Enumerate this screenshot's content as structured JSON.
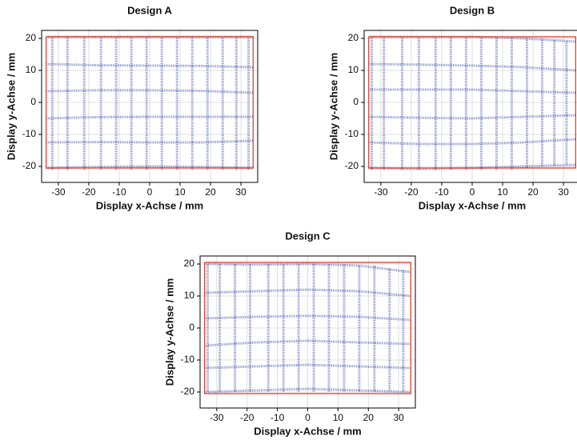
{
  "chart_data": [
    {
      "type": "line",
      "title": "Design A",
      "xlabel": "Display x-Achse / mm",
      "ylabel": "Display y-Achse / mm",
      "xlim": [
        -35.5,
        35.5
      ],
      "ylim": [
        -25,
        22.5
      ],
      "xticks": [
        -30,
        -20,
        -10,
        0,
        10,
        20,
        30
      ],
      "yticks": [
        -20,
        -10,
        0,
        10,
        20
      ],
      "grid": true,
      "series": [
        {
          "color": "#3a4ca8",
          "linestyle": "dotted",
          "x": [
            -34,
            -17,
            0,
            17,
            34
          ],
          "values": [
            20.5,
            20.5,
            20.5,
            20.5,
            20.5
          ]
        },
        {
          "color": "#3a4ca8",
          "linestyle": "dotted",
          "x": [
            -34,
            -17,
            0,
            17,
            34
          ],
          "values": [
            12,
            11.6,
            11.5,
            11.4,
            11
          ]
        },
        {
          "color": "#3a4ca8",
          "linestyle": "dotted",
          "x": [
            -34,
            -17,
            0,
            17,
            34
          ],
          "values": [
            3.5,
            3.8,
            3.8,
            3.6,
            3
          ]
        },
        {
          "color": "#3a4ca8",
          "linestyle": "dotted",
          "x": [
            -34,
            -17,
            0,
            17,
            34
          ],
          "values": [
            -5,
            -4.6,
            -4.5,
            -4.5,
            -4.5
          ]
        },
        {
          "color": "#3a4ca8",
          "linestyle": "dotted",
          "x": [
            -34,
            -17,
            0,
            17,
            34
          ],
          "values": [
            -12.5,
            -12.4,
            -12.5,
            -12.5,
            -12
          ]
        },
        {
          "color": "#3a4ca8",
          "linestyle": "dotted",
          "x": [
            -34,
            -17,
            0,
            17,
            34
          ],
          "values": [
            -20.5,
            -20.2,
            -20,
            -20.2,
            -20.5
          ]
        },
        {
          "color": "#3a4ca8",
          "linestyle": "dotted",
          "x": [
            -32,
            -32
          ],
          "values": [
            20.5,
            -21
          ]
        },
        {
          "color": "#3a4ca8",
          "linestyle": "dotted",
          "x": [
            -27,
            -27
          ],
          "values": [
            20.5,
            -21
          ]
        },
        {
          "color": "#3a4ca8",
          "linestyle": "dotted",
          "x": [
            -21.5,
            -21.5
          ],
          "values": [
            20.5,
            -21
          ]
        },
        {
          "color": "#3a4ca8",
          "linestyle": "dotted",
          "x": [
            -16,
            -16
          ],
          "values": [
            20.5,
            -21
          ]
        },
        {
          "color": "#3a4ca8",
          "linestyle": "dotted",
          "x": [
            -11,
            -11
          ],
          "values": [
            20.5,
            -21
          ]
        },
        {
          "color": "#3a4ca8",
          "linestyle": "dotted",
          "x": [
            -6,
            -6
          ],
          "values": [
            20.5,
            -21
          ]
        },
        {
          "color": "#3a4ca8",
          "linestyle": "dotted",
          "x": [
            -1,
            -1
          ],
          "values": [
            20.5,
            -21
          ]
        },
        {
          "color": "#3a4ca8",
          "linestyle": "dotted",
          "x": [
            4,
            4
          ],
          "values": [
            20.5,
            -21
          ]
        },
        {
          "color": "#3a4ca8",
          "linestyle": "dotted",
          "x": [
            9,
            9
          ],
          "values": [
            20.5,
            -21
          ]
        },
        {
          "color": "#3a4ca8",
          "linestyle": "dotted",
          "x": [
            14,
            14
          ],
          "values": [
            20.5,
            -21
          ]
        },
        {
          "color": "#3a4ca8",
          "linestyle": "dotted",
          "x": [
            19,
            19
          ],
          "values": [
            20.5,
            -21
          ]
        },
        {
          "color": "#3a4ca8",
          "linestyle": "dotted",
          "x": [
            24,
            24
          ],
          "values": [
            20.5,
            -21
          ]
        },
        {
          "color": "#3a4ca8",
          "linestyle": "dotted",
          "x": [
            28.5,
            28.5
          ],
          "values": [
            20.5,
            -21
          ]
        },
        {
          "color": "#3a4ca8",
          "linestyle": "dotted",
          "x": [
            32.5,
            32.5
          ],
          "values": [
            20.5,
            -21
          ]
        },
        {
          "color": "#e8321e",
          "linestyle": "solid",
          "x": [
            -34,
            34,
            34,
            -34,
            -34
          ],
          "values": [
            20.5,
            20.5,
            -20.5,
            -20.5,
            20.5
          ]
        }
      ]
    },
    {
      "type": "line",
      "title": "Design B",
      "xlabel": "Display x-Achse / mm",
      "ylabel": "Display y-Achse / mm",
      "xlim": [
        -35.5,
        35.5
      ],
      "ylim": [
        -25,
        22.5
      ],
      "xticks": [
        -30,
        -20,
        -10,
        0,
        10,
        20,
        30
      ],
      "yticks": [
        -20,
        -10,
        0,
        10,
        20
      ],
      "grid": true,
      "series": [
        {
          "color": "#3a4ca8",
          "linestyle": "dotted",
          "x": [
            -34,
            -17,
            0,
            17,
            34
          ],
          "values": [
            20.5,
            20.5,
            20.5,
            20,
            19
          ]
        },
        {
          "color": "#3a4ca8",
          "linestyle": "dotted",
          "x": [
            -34,
            -17,
            0,
            17,
            34
          ],
          "values": [
            12,
            11.8,
            11.5,
            11,
            10
          ]
        },
        {
          "color": "#3a4ca8",
          "linestyle": "dotted",
          "x": [
            -34,
            -17,
            0,
            17,
            34
          ],
          "values": [
            4,
            4,
            4,
            3.5,
            3
          ]
        },
        {
          "color": "#3a4ca8",
          "linestyle": "dotted",
          "x": [
            -34,
            -17,
            0,
            17,
            34
          ],
          "values": [
            -4.5,
            -4.8,
            -5,
            -4.5,
            -4
          ]
        },
        {
          "color": "#3a4ca8",
          "linestyle": "dotted",
          "x": [
            -34,
            -17,
            0,
            17,
            34
          ],
          "values": [
            -12.5,
            -13,
            -13,
            -12.5,
            -11.5
          ]
        },
        {
          "color": "#3a4ca8",
          "linestyle": "dotted",
          "x": [
            -34,
            -17,
            0,
            17,
            34
          ],
          "values": [
            -20.5,
            -20.8,
            -20.5,
            -20,
            -19.5
          ]
        },
        {
          "color": "#3a4ca8",
          "linestyle": "dotted",
          "x": [
            -33,
            -33
          ],
          "values": [
            20.5,
            -21
          ]
        },
        {
          "color": "#3a4ca8",
          "linestyle": "dotted",
          "x": [
            -29,
            -29
          ],
          "values": [
            20.5,
            -21
          ]
        },
        {
          "color": "#3a4ca8",
          "linestyle": "dotted",
          "x": [
            -23,
            -23
          ],
          "values": [
            20.5,
            -21
          ]
        },
        {
          "color": "#3a4ca8",
          "linestyle": "dotted",
          "x": [
            -17.5,
            -17.5
          ],
          "values": [
            20.5,
            -21
          ]
        },
        {
          "color": "#3a4ca8",
          "linestyle": "dotted",
          "x": [
            -12,
            -12
          ],
          "values": [
            20.5,
            -21
          ]
        },
        {
          "color": "#3a4ca8",
          "linestyle": "dotted",
          "x": [
            -7,
            -7
          ],
          "values": [
            20.5,
            -21
          ]
        },
        {
          "color": "#3a4ca8",
          "linestyle": "dotted",
          "x": [
            -2,
            -2
          ],
          "values": [
            20.5,
            -21
          ]
        },
        {
          "color": "#3a4ca8",
          "linestyle": "dotted",
          "x": [
            3,
            3
          ],
          "values": [
            20.5,
            -21
          ]
        },
        {
          "color": "#3a4ca8",
          "linestyle": "dotted",
          "x": [
            8,
            8
          ],
          "values": [
            20.5,
            -21
          ]
        },
        {
          "color": "#3a4ca8",
          "linestyle": "dotted",
          "x": [
            13,
            13
          ],
          "values": [
            20.5,
            -21
          ]
        },
        {
          "color": "#3a4ca8",
          "linestyle": "dotted",
          "x": [
            18,
            18
          ],
          "values": [
            20,
            -20.5
          ]
        },
        {
          "color": "#3a4ca8",
          "linestyle": "dotted",
          "x": [
            23,
            23
          ],
          "values": [
            20,
            -20
          ]
        },
        {
          "color": "#3a4ca8",
          "linestyle": "dotted",
          "x": [
            27,
            27
          ],
          "values": [
            19.5,
            -20
          ]
        },
        {
          "color": "#3a4ca8",
          "linestyle": "dotted",
          "x": [
            31,
            31
          ],
          "values": [
            19,
            -19.5
          ]
        },
        {
          "color": "#e8321e",
          "linestyle": "solid",
          "x": [
            -34,
            34,
            34,
            -34,
            -34
          ],
          "values": [
            20.5,
            20.5,
            -20.5,
            -20.5,
            20.5
          ]
        }
      ]
    },
    {
      "type": "line",
      "title": "Design C",
      "xlabel": "Display x-Achse / mm",
      "ylabel": "Display y-Achse / mm",
      "xlim": [
        -35.5,
        35.5
      ],
      "ylim": [
        -25,
        22.5
      ],
      "xticks": [
        -30,
        -20,
        -10,
        0,
        10,
        20,
        30
      ],
      "yticks": [
        -20,
        -10,
        0,
        10,
        20
      ],
      "grid": true,
      "series": [
        {
          "color": "#3a4ca8",
          "linestyle": "dotted",
          "x": [
            -34,
            -17,
            0,
            17,
            34
          ],
          "values": [
            20,
            19.8,
            20,
            19.5,
            17.5
          ]
        },
        {
          "color": "#3a4ca8",
          "linestyle": "dotted",
          "x": [
            -34,
            -17,
            0,
            17,
            34
          ],
          "values": [
            11,
            11.5,
            12,
            11.5,
            10
          ]
        },
        {
          "color": "#3a4ca8",
          "linestyle": "dotted",
          "x": [
            -34,
            -17,
            0,
            17,
            34
          ],
          "values": [
            3,
            3.5,
            3.8,
            3.5,
            2.5
          ]
        },
        {
          "color": "#3a4ca8",
          "linestyle": "dotted",
          "x": [
            -34,
            -17,
            0,
            17,
            34
          ],
          "values": [
            -5.5,
            -4.5,
            -4,
            -4.5,
            -5
          ]
        },
        {
          "color": "#3a4ca8",
          "linestyle": "dotted",
          "x": [
            -34,
            -17,
            0,
            17,
            34
          ],
          "values": [
            -12.5,
            -12,
            -11.5,
            -12,
            -12.5
          ]
        },
        {
          "color": "#3a4ca8",
          "linestyle": "dotted",
          "x": [
            -34,
            -17,
            0,
            17,
            34
          ],
          "values": [
            -20,
            -19.5,
            -19,
            -19.5,
            -20
          ]
        },
        {
          "color": "#3a4ca8",
          "linestyle": "dotted",
          "x": [
            -33,
            -33
          ],
          "values": [
            20,
            -20
          ]
        },
        {
          "color": "#3a4ca8",
          "linestyle": "dotted",
          "x": [
            -29,
            -29
          ],
          "values": [
            20,
            -20
          ]
        },
        {
          "color": "#3a4ca8",
          "linestyle": "dotted",
          "x": [
            -24,
            -24
          ],
          "values": [
            20,
            -20
          ]
        },
        {
          "color": "#3a4ca8",
          "linestyle": "dotted",
          "x": [
            -19,
            -19
          ],
          "values": [
            20,
            -20
          ]
        },
        {
          "color": "#3a4ca8",
          "linestyle": "dotted",
          "x": [
            -13,
            -13
          ],
          "values": [
            20,
            -20
          ]
        },
        {
          "color": "#3a4ca8",
          "linestyle": "dotted",
          "x": [
            -8,
            -8
          ],
          "values": [
            20,
            -20
          ]
        },
        {
          "color": "#3a4ca8",
          "linestyle": "dotted",
          "x": [
            -3,
            -3
          ],
          "values": [
            20,
            -20
          ]
        },
        {
          "color": "#3a4ca8",
          "linestyle": "dotted",
          "x": [
            2,
            2
          ],
          "values": [
            20,
            -20
          ]
        },
        {
          "color": "#3a4ca8",
          "linestyle": "dotted",
          "x": [
            7,
            7
          ],
          "values": [
            20,
            -20
          ]
        },
        {
          "color": "#3a4ca8",
          "linestyle": "dotted",
          "x": [
            12,
            12
          ],
          "values": [
            20,
            -20
          ]
        },
        {
          "color": "#3a4ca8",
          "linestyle": "dotted",
          "x": [
            17,
            17
          ],
          "values": [
            19.5,
            -20
          ]
        },
        {
          "color": "#3a4ca8",
          "linestyle": "dotted",
          "x": [
            22,
            22
          ],
          "values": [
            19.5,
            -20
          ]
        },
        {
          "color": "#3a4ca8",
          "linestyle": "dotted",
          "x": [
            27,
            27
          ],
          "values": [
            18.5,
            -20
          ]
        },
        {
          "color": "#3a4ca8",
          "linestyle": "dotted",
          "x": [
            31.5,
            31.5
          ],
          "values": [
            18,
            -20
          ]
        },
        {
          "color": "#e8321e",
          "linestyle": "solid",
          "x": [
            -34,
            34,
            34,
            -34,
            -34
          ],
          "values": [
            20.5,
            20.5,
            -20.5,
            -20.5,
            20.5
          ]
        }
      ]
    }
  ]
}
